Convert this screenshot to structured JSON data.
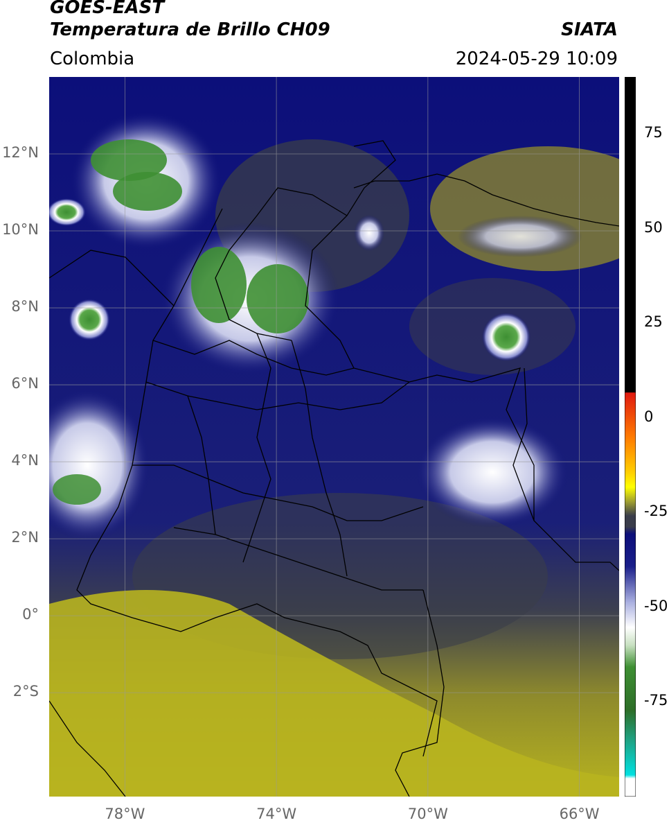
{
  "header": {
    "satellite": "GOES-EAST",
    "product": "Temperatura de Brillo CH09",
    "region": "Colombia",
    "brand": "SIATA",
    "timestamp": "2024-05-29 10:09"
  },
  "map": {
    "lon_range": [
      -80,
      -64.95
    ],
    "lat_range": [
      -4.7,
      14.0
    ],
    "lat_ticks": [
      {
        "value": 12,
        "label": "12°N"
      },
      {
        "value": 10,
        "label": "10°N"
      },
      {
        "value": 8,
        "label": "8°N"
      },
      {
        "value": 6,
        "label": "6°N"
      },
      {
        "value": 4,
        "label": "4°N"
      },
      {
        "value": 2,
        "label": "2°N"
      },
      {
        "value": 0,
        "label": "0°"
      },
      {
        "value": -2,
        "label": "2°S"
      }
    ],
    "lon_ticks": [
      {
        "value": -78,
        "label": "78°W"
      },
      {
        "value": -74,
        "label": "74°W"
      },
      {
        "value": -70,
        "label": "70°W"
      },
      {
        "value": -66,
        "label": "66°W"
      }
    ],
    "palette": {
      "warm": "#b8b41f",
      "mid": "#3a3d4a",
      "cold": "#0c0f7a",
      "colder": "#ffffff",
      "coldest": "#3e8f33",
      "grid": "#9a9a9a",
      "border": "#000000"
    }
  },
  "colorbar": {
    "range": [
      -100,
      90
    ],
    "ticks": [
      {
        "value": 75,
        "label": "75"
      },
      {
        "value": 50,
        "label": "50"
      },
      {
        "value": 25,
        "label": "25"
      },
      {
        "value": 0,
        "label": "0"
      },
      {
        "value": -25,
        "label": "-25"
      },
      {
        "value": -50,
        "label": "-50"
      },
      {
        "value": -75,
        "label": "-75"
      }
    ]
  }
}
